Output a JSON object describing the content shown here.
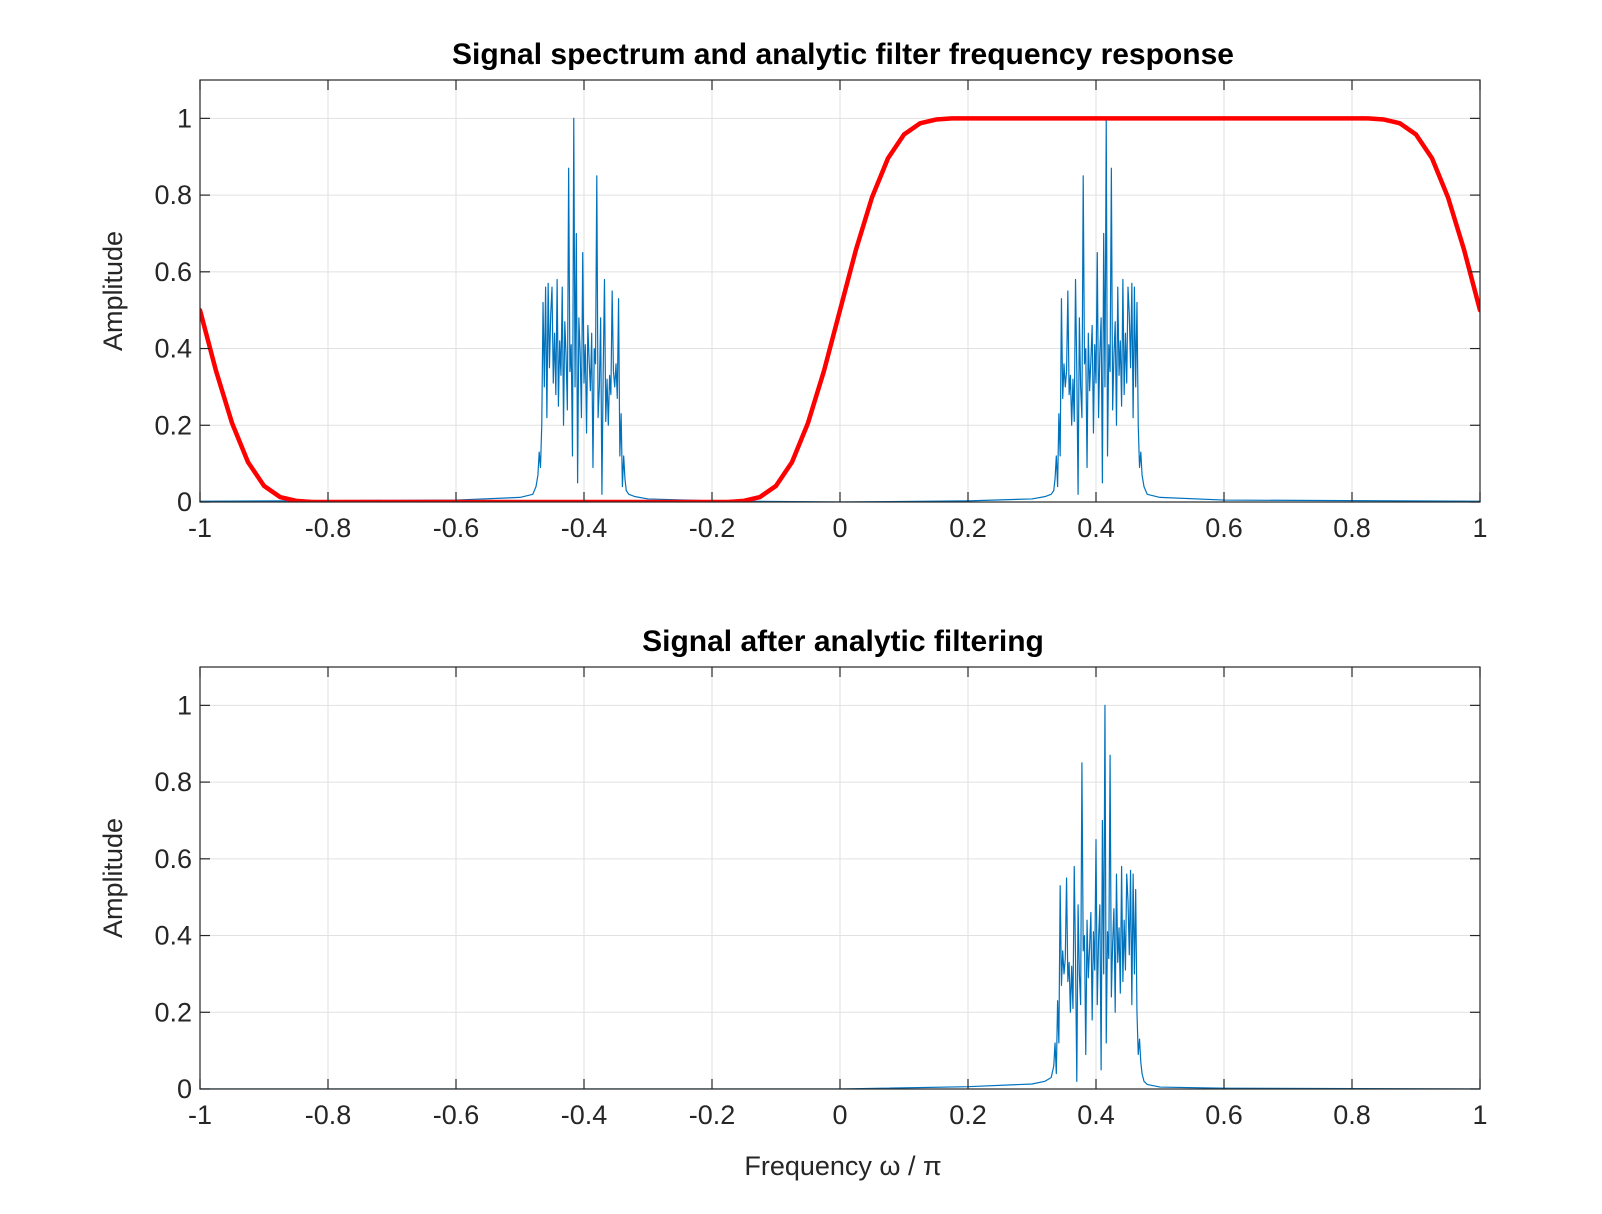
{
  "chart_data": [
    {
      "type": "line",
      "title": "Signal spectrum and analytic filter frequency response",
      "ylabel": "Amplitude",
      "xlabel": "",
      "xlim": [
        -1,
        1
      ],
      "ylim": [
        0,
        1.1
      ],
      "x_ticks": [
        "-1",
        "-0.8",
        "-0.6",
        "-0.4",
        "-0.2",
        "0",
        "0.2",
        "0.4",
        "0.6",
        "0.8",
        "1"
      ],
      "y_ticks": [
        "0",
        "0.2",
        "0.4",
        "0.6",
        "0.8",
        "1"
      ],
      "grid": true,
      "series": [
        {
          "color": "#0072BD",
          "style": "thin",
          "x": [
            -1.0,
            -0.6,
            -0.5,
            -0.48,
            -0.475,
            -0.472,
            -0.47,
            -0.468,
            -0.466,
            -0.464,
            -0.462,
            -0.46,
            -0.458,
            -0.456,
            -0.454,
            -0.452,
            -0.45,
            -0.448,
            -0.446,
            -0.444,
            -0.442,
            -0.44,
            -0.438,
            -0.436,
            -0.434,
            -0.432,
            -0.43,
            -0.428,
            -0.426,
            -0.424,
            -0.422,
            -0.42,
            -0.418,
            -0.416,
            -0.414,
            -0.412,
            -0.41,
            -0.408,
            -0.406,
            -0.404,
            -0.402,
            -0.4,
            -0.398,
            -0.396,
            -0.394,
            -0.392,
            -0.39,
            -0.388,
            -0.386,
            -0.384,
            -0.382,
            -0.38,
            -0.378,
            -0.376,
            -0.374,
            -0.372,
            -0.37,
            -0.368,
            -0.366,
            -0.364,
            -0.362,
            -0.36,
            -0.358,
            -0.356,
            -0.354,
            -0.352,
            -0.35,
            -0.348,
            -0.346,
            -0.344,
            -0.342,
            -0.34,
            -0.338,
            -0.336,
            -0.334,
            -0.33,
            -0.32,
            -0.3,
            -0.2,
            0.0,
            0.2,
            0.3,
            0.32,
            0.33,
            0.334,
            0.336,
            0.338,
            0.34,
            0.342,
            0.344,
            0.346,
            0.348,
            0.35,
            0.352,
            0.354,
            0.356,
            0.358,
            0.36,
            0.362,
            0.364,
            0.366,
            0.368,
            0.37,
            0.372,
            0.374,
            0.376,
            0.378,
            0.38,
            0.382,
            0.384,
            0.386,
            0.388,
            0.39,
            0.392,
            0.394,
            0.396,
            0.398,
            0.4,
            0.402,
            0.404,
            0.406,
            0.408,
            0.41,
            0.412,
            0.414,
            0.416,
            0.418,
            0.42,
            0.422,
            0.424,
            0.426,
            0.428,
            0.43,
            0.432,
            0.434,
            0.436,
            0.438,
            0.44,
            0.442,
            0.444,
            0.446,
            0.448,
            0.45,
            0.452,
            0.454,
            0.456,
            0.458,
            0.46,
            0.462,
            0.464,
            0.466,
            0.468,
            0.47,
            0.472,
            0.475,
            0.48,
            0.5,
            0.6,
            1.0
          ],
          "y": [
            0.002,
            0.005,
            0.012,
            0.02,
            0.04,
            0.07,
            0.13,
            0.09,
            0.2,
            0.52,
            0.3,
            0.56,
            0.22,
            0.57,
            0.35,
            0.49,
            0.56,
            0.31,
            0.44,
            0.28,
            0.58,
            0.25,
            0.42,
            0.33,
            0.56,
            0.2,
            0.47,
            0.38,
            0.24,
            0.87,
            0.34,
            0.41,
            0.12,
            1.0,
            0.3,
            0.7,
            0.05,
            0.48,
            0.39,
            0.22,
            0.65,
            0.31,
            0.41,
            0.18,
            0.46,
            0.37,
            0.29,
            0.44,
            0.09,
            0.4,
            0.36,
            0.85,
            0.22,
            0.3,
            0.48,
            0.02,
            0.34,
            0.58,
            0.21,
            0.32,
            0.2,
            0.33,
            0.28,
            0.55,
            0.34,
            0.3,
            0.36,
            0.27,
            0.53,
            0.12,
            0.23,
            0.04,
            0.12,
            0.06,
            0.03,
            0.02,
            0.014,
            0.008,
            0.003,
            0.0,
            0.003,
            0.008,
            0.014,
            0.02,
            0.03,
            0.06,
            0.12,
            0.04,
            0.23,
            0.12,
            0.53,
            0.27,
            0.36,
            0.3,
            0.34,
            0.55,
            0.28,
            0.33,
            0.2,
            0.32,
            0.21,
            0.58,
            0.34,
            0.02,
            0.48,
            0.3,
            0.22,
            0.85,
            0.36,
            0.4,
            0.09,
            0.44,
            0.29,
            0.37,
            0.46,
            0.18,
            0.41,
            0.31,
            0.65,
            0.22,
            0.39,
            0.48,
            0.05,
            0.7,
            0.3,
            1.0,
            0.12,
            0.41,
            0.34,
            0.87,
            0.24,
            0.38,
            0.47,
            0.2,
            0.56,
            0.33,
            0.42,
            0.25,
            0.58,
            0.28,
            0.44,
            0.31,
            0.56,
            0.49,
            0.35,
            0.57,
            0.22,
            0.56,
            0.3,
            0.52,
            0.2,
            0.09,
            0.13,
            0.07,
            0.04,
            0.02,
            0.012,
            0.005,
            0.002
          ]
        },
        {
          "color": "#FF0000",
          "style": "thick",
          "x": [
            -1.0,
            -0.975,
            -0.95,
            -0.925,
            -0.9,
            -0.875,
            -0.85,
            -0.825,
            -0.8,
            -0.6,
            -0.4,
            -0.2,
            -0.175,
            -0.15,
            -0.125,
            -0.1,
            -0.075,
            -0.05,
            -0.025,
            0.0,
            0.025,
            0.05,
            0.075,
            0.1,
            0.125,
            0.15,
            0.175,
            0.2,
            0.4,
            0.6,
            0.8,
            0.825,
            0.85,
            0.875,
            0.9,
            0.925,
            0.95,
            0.975,
            1.0
          ],
          "y": [
            0.5,
            0.342,
            0.206,
            0.104,
            0.042,
            0.013,
            0.003,
            0.0,
            0.0,
            0.0,
            0.0,
            0.0,
            0.0,
            0.003,
            0.013,
            0.042,
            0.104,
            0.206,
            0.342,
            0.5,
            0.658,
            0.794,
            0.896,
            0.958,
            0.987,
            0.997,
            1.0,
            1.0,
            1.0,
            1.0,
            1.0,
            1.0,
            0.997,
            0.987,
            0.958,
            0.896,
            0.794,
            0.658,
            0.5
          ]
        }
      ]
    },
    {
      "type": "line",
      "title": "Signal after analytic filtering",
      "ylabel": "Amplitude",
      "xlabel": "Frequency  ω  /  π",
      "xlim": [
        -1,
        1
      ],
      "ylim": [
        0,
        1.1
      ],
      "x_ticks": [
        "-1",
        "-0.8",
        "-0.6",
        "-0.4",
        "-0.2",
        "0",
        "0.2",
        "0.4",
        "0.6",
        "0.8",
        "1"
      ],
      "y_ticks": [
        "0",
        "0.2",
        "0.4",
        "0.6",
        "0.8",
        "1"
      ],
      "grid": true,
      "series": [
        {
          "color": "#0072BD",
          "style": "thin",
          "x": [
            -1.0,
            -0.4,
            0.0,
            0.2,
            0.3,
            0.32,
            0.33,
            0.334,
            0.336,
            0.338,
            0.34,
            0.342,
            0.344,
            0.346,
            0.348,
            0.35,
            0.352,
            0.354,
            0.356,
            0.358,
            0.36,
            0.362,
            0.364,
            0.366,
            0.368,
            0.37,
            0.372,
            0.374,
            0.376,
            0.378,
            0.38,
            0.382,
            0.384,
            0.386,
            0.388,
            0.39,
            0.392,
            0.394,
            0.396,
            0.398,
            0.4,
            0.402,
            0.404,
            0.406,
            0.408,
            0.41,
            0.412,
            0.414,
            0.416,
            0.418,
            0.42,
            0.422,
            0.424,
            0.426,
            0.428,
            0.43,
            0.432,
            0.434,
            0.436,
            0.438,
            0.44,
            0.442,
            0.444,
            0.446,
            0.448,
            0.45,
            0.452,
            0.454,
            0.456,
            0.458,
            0.46,
            0.462,
            0.464,
            0.466,
            0.468,
            0.47,
            0.472,
            0.475,
            0.48,
            0.5,
            0.6,
            1.0
          ],
          "y": [
            0.0,
            0.0,
            0.0,
            0.006,
            0.013,
            0.02,
            0.03,
            0.06,
            0.12,
            0.04,
            0.23,
            0.12,
            0.53,
            0.27,
            0.36,
            0.3,
            0.34,
            0.55,
            0.28,
            0.33,
            0.2,
            0.32,
            0.21,
            0.58,
            0.34,
            0.02,
            0.48,
            0.3,
            0.22,
            0.85,
            0.36,
            0.4,
            0.09,
            0.44,
            0.29,
            0.37,
            0.46,
            0.18,
            0.41,
            0.31,
            0.65,
            0.22,
            0.39,
            0.48,
            0.05,
            0.7,
            0.3,
            1.0,
            0.12,
            0.41,
            0.34,
            0.87,
            0.24,
            0.38,
            0.47,
            0.2,
            0.56,
            0.33,
            0.42,
            0.25,
            0.58,
            0.28,
            0.44,
            0.31,
            0.56,
            0.49,
            0.35,
            0.57,
            0.22,
            0.56,
            0.3,
            0.52,
            0.2,
            0.09,
            0.13,
            0.07,
            0.04,
            0.02,
            0.012,
            0.005,
            0.002,
            0.0
          ]
        }
      ]
    }
  ]
}
